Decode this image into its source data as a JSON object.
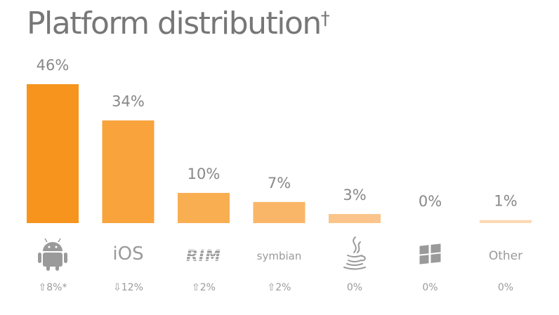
{
  "page": {
    "title": "Platform distribution",
    "title_mark": "†"
  },
  "chart_data": {
    "type": "bar",
    "title": "Platform distribution†",
    "categories": [
      "Android",
      "iOS",
      "RIM",
      "symbian",
      "Java",
      "Windows",
      "Other"
    ],
    "values": [
      46,
      34,
      10,
      7,
      3,
      0,
      1
    ],
    "value_labels": [
      "46%",
      "34%",
      "10%",
      "7%",
      "3%",
      "0%",
      "1%"
    ],
    "change_labels": [
      "⇧8%*",
      "⇩12%",
      "⇧2%",
      "⇧2%",
      "0%",
      "0%",
      "0%"
    ],
    "category_display": [
      {
        "kind": "icon",
        "icon": "android-icon"
      },
      {
        "kind": "text",
        "text": "iOS",
        "size": 26
      },
      {
        "kind": "icon",
        "icon": "rim-logo-icon",
        "text": "RIM"
      },
      {
        "kind": "text",
        "text": "symbian",
        "size": 15
      },
      {
        "kind": "icon",
        "icon": "java-icon"
      },
      {
        "kind": "icon",
        "icon": "windows-icon"
      },
      {
        "kind": "text",
        "text": "Other",
        "size": 17
      }
    ],
    "colors": [
      "#F7941E",
      "#F8A33C",
      "#F9AE52",
      "#FAB668",
      "#FBC48A",
      "#FCCFA0",
      "#FDD9B4"
    ],
    "ylim": [
      0,
      46
    ],
    "grid": false,
    "legend": "none"
  }
}
